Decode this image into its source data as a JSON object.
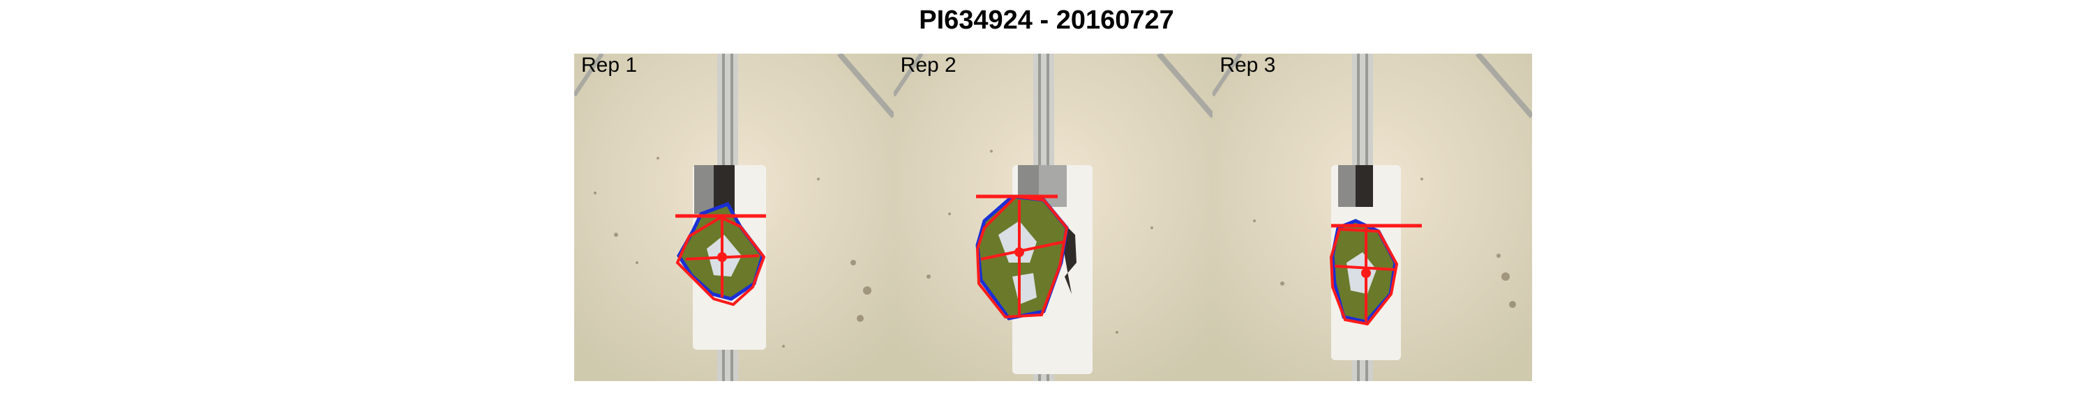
{
  "figure": {
    "title": "PI634924 - 20160727"
  },
  "panels": [
    {
      "label": "Rep 1"
    },
    {
      "label": "Rep 2"
    },
    {
      "label": "Rep 3"
    }
  ],
  "colors": {
    "convex_hull": "#ff1a1a",
    "plant_outline": "#1a2fd6",
    "plant_fill": "#6a7a2a",
    "background_soil": "#e0d5bf",
    "pot": "#f3f1ec"
  }
}
